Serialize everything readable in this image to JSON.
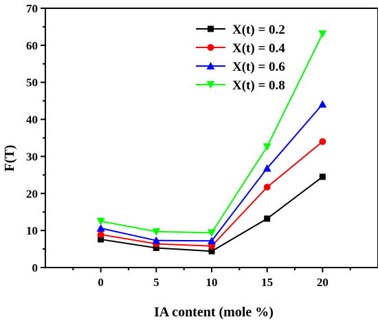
{
  "chart_data": {
    "type": "line",
    "xlabel": "IA content (mole %)",
    "ylabel": "F(T)",
    "x": [
      0,
      5,
      10,
      15,
      20
    ],
    "xlim": [
      -5,
      25
    ],
    "ylim": [
      0,
      70
    ],
    "xticks": [
      "0",
      "5",
      "10",
      "15",
      "20"
    ],
    "yticks": [
      "0",
      "10",
      "20",
      "30",
      "40",
      "50",
      "60",
      "70"
    ],
    "grid": false,
    "legend_position": "top-right",
    "series": [
      {
        "name": "X(t) = 0.2",
        "color": "#000000",
        "marker": "square",
        "values": [
          7.6,
          5.3,
          4.4,
          13.2,
          24.5
        ]
      },
      {
        "name": "X(t) = 0.4",
        "color": "#ff0000",
        "marker": "circle",
        "values": [
          8.9,
          6.4,
          5.8,
          21.7,
          34.0
        ]
      },
      {
        "name": "X(t) = 0.6",
        "color": "#0000ff",
        "marker": "triangle-up",
        "values": [
          10.6,
          7.3,
          7.2,
          26.8,
          44.1
        ]
      },
      {
        "name": "X(t) = 0.8",
        "color": "#00ff00",
        "marker": "triangle-down",
        "values": [
          12.5,
          9.7,
          9.4,
          32.6,
          63.1
        ]
      }
    ]
  }
}
